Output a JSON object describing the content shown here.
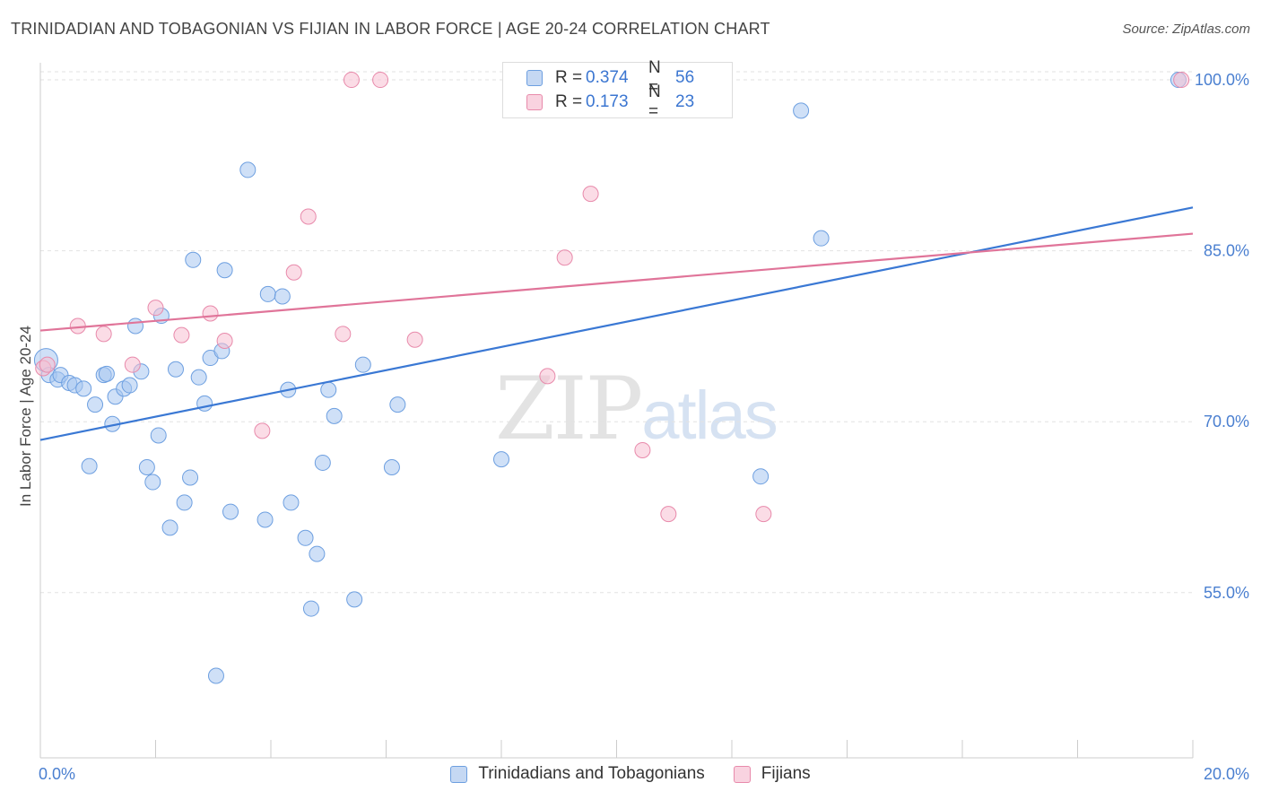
{
  "header": {
    "title": "TRINIDADIAN AND TOBAGONIAN VS FIJIAN IN LABOR FORCE | AGE 20-24 CORRELATION CHART",
    "source": "Source: ZipAtlas.com"
  },
  "watermark": {
    "zip": "ZIP",
    "atlas": "atlas"
  },
  "legend": {
    "rows": [
      {
        "r_label": "R =",
        "r_value": "0.374",
        "n_label": "N =",
        "n_value": "56",
        "color": "#a8c6f0",
        "border": "#6d9fe0"
      },
      {
        "r_label": "R =",
        "r_value": "0.173",
        "n_label": "N =",
        "n_value": "23",
        "color": "#f7c0d2",
        "border": "#e88aab"
      }
    ]
  },
  "bottom_legend": {
    "items": [
      {
        "label": "Trinidadians and Tobagonians",
        "color": "#a8c6f0",
        "border": "#6d9fe0"
      },
      {
        "label": "Fijians",
        "color": "#f7c0d2",
        "border": "#e88aab"
      }
    ]
  },
  "chart_data": {
    "type": "scatter",
    "title": "TRINIDADIAN AND TOBAGONIAN VS FIJIAN IN LABOR FORCE | AGE 20-24 CORRELATION CHART",
    "xlabel": "",
    "ylabel": "In Labor Force | Age 20-24",
    "xlim": [
      0,
      20
    ],
    "ylim": [
      40.5,
      101.5
    ],
    "x_tick_labels": [
      "0.0%",
      "20.0%"
    ],
    "y_ticks": [
      55,
      70,
      85,
      100
    ],
    "y_tick_labels": [
      "55.0%",
      "70.0%",
      "85.0%",
      "100.0%"
    ],
    "grid": true,
    "legend_position": "top-center",
    "series": [
      {
        "name": "Trinidadians and Tobagonians",
        "color": "#6d9fe0",
        "fill": "#a8c6f0",
        "trend": {
          "x": [
            0,
            20
          ],
          "y": [
            68.4,
            88.8
          ],
          "color": "#3a78d4"
        },
        "points": [
          [
            0.1,
            75.4
          ],
          [
            0.15,
            74.1
          ],
          [
            0.3,
            73.7
          ],
          [
            0.35,
            74.1
          ],
          [
            0.5,
            73.4
          ],
          [
            0.6,
            73.2
          ],
          [
            0.75,
            72.9
          ],
          [
            0.85,
            66.1
          ],
          [
            0.95,
            71.5
          ],
          [
            1.1,
            74.1
          ],
          [
            1.15,
            74.2
          ],
          [
            1.25,
            69.8
          ],
          [
            1.3,
            72.2
          ],
          [
            1.45,
            72.9
          ],
          [
            1.55,
            73.2
          ],
          [
            1.65,
            78.4
          ],
          [
            1.75,
            74.4
          ],
          [
            1.85,
            66.0
          ],
          [
            1.95,
            64.7
          ],
          [
            2.05,
            68.8
          ],
          [
            2.1,
            79.3
          ],
          [
            2.25,
            60.7
          ],
          [
            2.35,
            74.6
          ],
          [
            2.5,
            62.9
          ],
          [
            2.6,
            65.1
          ],
          [
            2.65,
            84.2
          ],
          [
            2.75,
            73.9
          ],
          [
            2.85,
            71.6
          ],
          [
            2.95,
            75.6
          ],
          [
            3.05,
            47.7
          ],
          [
            3.15,
            76.2
          ],
          [
            3.2,
            83.3
          ],
          [
            3.3,
            62.1
          ],
          [
            3.6,
            92.1
          ],
          [
            3.9,
            61.4
          ],
          [
            3.95,
            81.2
          ],
          [
            4.2,
            81.0
          ],
          [
            4.3,
            72.8
          ],
          [
            4.35,
            62.9
          ],
          [
            4.6,
            59.8
          ],
          [
            4.7,
            53.6
          ],
          [
            4.8,
            58.4
          ],
          [
            4.9,
            66.4
          ],
          [
            5.0,
            72.8
          ],
          [
            5.1,
            70.5
          ],
          [
            5.45,
            54.4
          ],
          [
            5.6,
            75.0
          ],
          [
            6.1,
            66.0
          ],
          [
            6.2,
            71.5
          ],
          [
            8.0,
            66.7
          ],
          [
            9.0,
            100.0
          ],
          [
            13.2,
            97.3
          ],
          [
            13.55,
            86.1
          ],
          [
            12.5,
            65.2
          ],
          [
            19.75,
            100.0
          ],
          [
            8.4,
            100.0
          ]
        ]
      },
      {
        "name": "Fijians",
        "color": "#e88aab",
        "fill": "#f7c0d2",
        "trend": {
          "x": [
            0,
            20
          ],
          "y": [
            78.0,
            86.5
          ],
          "color": "#e07499"
        },
        "points": [
          [
            0.05,
            74.7
          ],
          [
            0.65,
            78.4
          ],
          [
            1.1,
            77.7
          ],
          [
            1.6,
            75.0
          ],
          [
            2.0,
            80.0
          ],
          [
            2.45,
            77.6
          ],
          [
            2.95,
            79.5
          ],
          [
            3.2,
            77.1
          ],
          [
            3.85,
            69.2
          ],
          [
            4.4,
            83.1
          ],
          [
            4.65,
            88.0
          ],
          [
            5.25,
            77.7
          ],
          [
            5.4,
            100.0
          ],
          [
            5.9,
            100.0
          ],
          [
            6.5,
            77.2
          ],
          [
            8.8,
            74.0
          ],
          [
            9.1,
            84.4
          ],
          [
            9.55,
            90.0
          ],
          [
            10.45,
            67.5
          ],
          [
            10.9,
            61.9
          ],
          [
            12.55,
            61.9
          ],
          [
            19.8,
            100.0
          ],
          [
            0.12,
            75.0
          ]
        ]
      }
    ]
  }
}
